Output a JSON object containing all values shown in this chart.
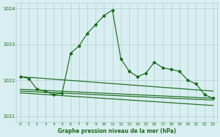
{
  "background_color": "#d8eef0",
  "grid_color": "#aaccd0",
  "line_color": "#1a6b1a",
  "main_series": {
    "x": [
      0,
      1,
      2,
      3,
      4,
      5,
      6,
      7,
      8,
      9,
      10,
      11,
      12,
      13,
      14,
      15,
      16,
      17,
      18,
      19,
      20,
      21,
      22,
      23
    ],
    "y": [
      1022.1,
      1022.05,
      1021.75,
      1021.7,
      1021.6,
      1021.65,
      1022.75,
      1022.95,
      1023.3,
      1023.55,
      1023.8,
      1023.95,
      1022.6,
      1022.25,
      1022.1,
      1022.2,
      1022.5,
      1022.35,
      1022.3,
      1022.25,
      1022.0,
      1021.9,
      1021.6,
      1021.5
    ]
  },
  "line2": {
    "x": [
      0,
      23
    ],
    "y": [
      1022.1,
      1021.7
    ]
  },
  "line3": {
    "x": [
      0,
      23
    ],
    "y": [
      1021.75,
      1021.5
    ]
  },
  "line4": {
    "x": [
      0,
      23
    ],
    "y": [
      1021.7,
      1021.45
    ]
  },
  "line5": {
    "x": [
      0,
      23
    ],
    "y": [
      1021.65,
      1021.3
    ]
  },
  "xlabel": "Graphe pression niveau de la mer (hPa)",
  "ylim": [
    1020.85,
    1024.15
  ],
  "xlim": [
    -0.5,
    23.5
  ],
  "yticks": [
    1021,
    1022,
    1023,
    1024
  ],
  "xticks": [
    0,
    1,
    2,
    3,
    4,
    5,
    6,
    7,
    8,
    9,
    10,
    11,
    12,
    13,
    14,
    15,
    16,
    17,
    18,
    19,
    20,
    21,
    22,
    23
  ]
}
